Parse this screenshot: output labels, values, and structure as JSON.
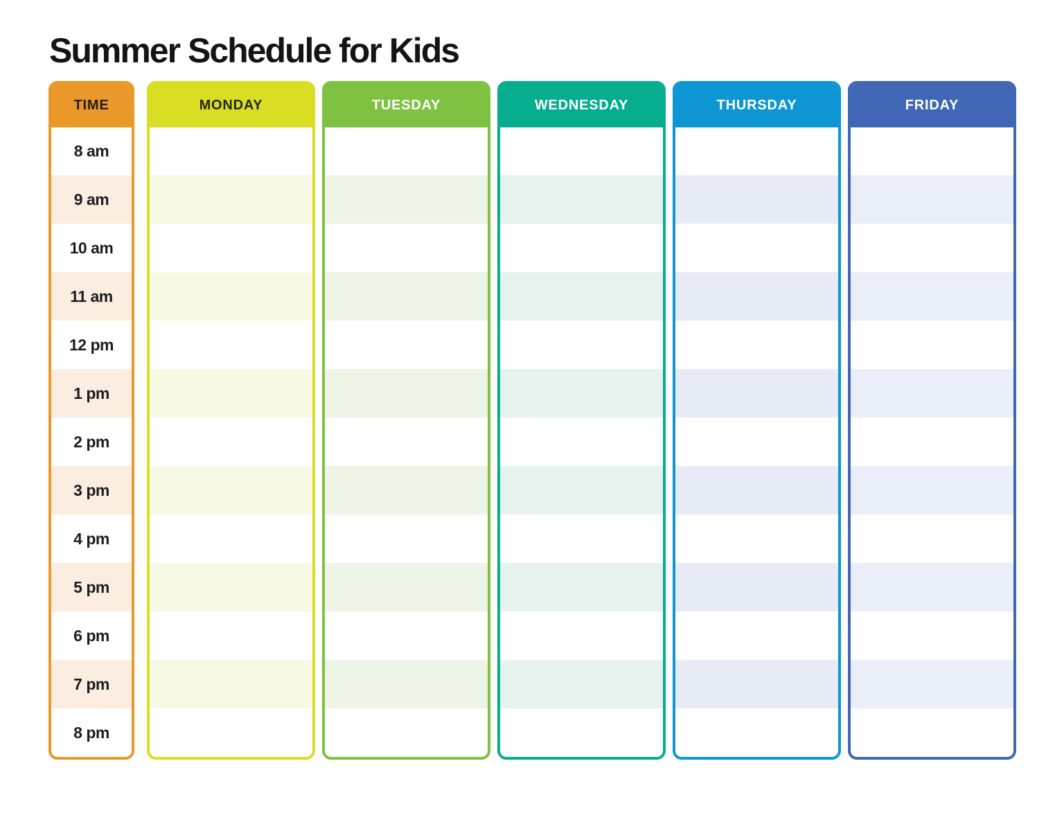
{
  "page": {
    "title": "Summer Schedule for Kids",
    "background_color": "#FFFFFF"
  },
  "schedule": {
    "time_column": {
      "header_label": "TIME",
      "accent_color": "#E9992A",
      "stripe_color": "#FBEEE0",
      "header_text_color": "#221E1A",
      "time_slots": [
        "8 am",
        "9 am",
        "10 am",
        "11 am",
        "12 pm",
        "1 pm",
        "2 pm",
        "3 pm",
        "4 pm",
        "5 pm",
        "6 pm",
        "7 pm",
        "8 pm"
      ]
    },
    "day_columns": [
      {
        "header_label": "MONDAY",
        "accent_color": "#D9DE25",
        "stripe_color": "#F8F9E4",
        "header_text_color": "#26270F"
      },
      {
        "header_label": "TUESDAY",
        "accent_color": "#7FC242",
        "stripe_color": "#EEF4E6",
        "header_text_color": "#FFFFFF"
      },
      {
        "header_label": "WEDNESDAY",
        "accent_color": "#06AD8F",
        "stripe_color": "#E6F2EE",
        "header_text_color": "#FFFFFF"
      },
      {
        "header_label": "THURSDAY",
        "accent_color": "#0E96D4",
        "stripe_color": "#E6EBF6",
        "header_text_color": "#FFFFFF"
      },
      {
        "header_label": "FRIDAY",
        "accent_color": "#4066B6",
        "stripe_color": "#EAEEF8",
        "header_text_color": "#FFFFFF"
      }
    ],
    "rows_per_column": 13
  }
}
